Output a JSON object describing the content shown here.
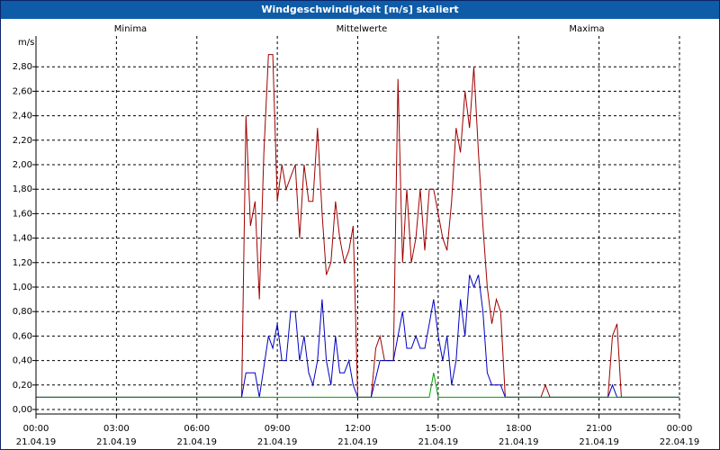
{
  "window": {
    "title": "Windgeschwindigkeit [m/s] skaliert"
  },
  "colors": {
    "min": "#00a000",
    "mean": "#0000c0",
    "max": "#a00000",
    "grid": "#000000"
  },
  "chart_data": {
    "type": "line",
    "title": "Windgeschwindigkeit [m/s] skaliert",
    "ylabel": "m/s",
    "ylim": [
      0,
      2.9
    ],
    "y_ticks": [
      "0,00",
      "0,20",
      "0,40",
      "0,60",
      "0,80",
      "1,00",
      "1,20",
      "1,40",
      "1,60",
      "1,80",
      "2,00",
      "2,20",
      "2,40",
      "2,60",
      "2,80"
    ],
    "x_range_hours": [
      0,
      24
    ],
    "x_tick_hours": [
      0,
      3,
      6,
      9,
      12,
      15,
      18,
      21,
      24
    ],
    "x_ticks": [
      {
        "time": "00:00",
        "date": "21.04.19"
      },
      {
        "time": "03:00",
        "date": "21.04.19"
      },
      {
        "time": "06:00",
        "date": "21.04.19"
      },
      {
        "time": "09:00",
        "date": "21.04.19"
      },
      {
        "time": "12:00",
        "date": "21.04.19"
      },
      {
        "time": "15:00",
        "date": "21.04.19"
      },
      {
        "time": "18:00",
        "date": "21.04.19"
      },
      {
        "time": "21:00",
        "date": "21.04.19"
      },
      {
        "time": "00:00",
        "date": "22.04.19"
      }
    ],
    "grid": true,
    "legend": [
      "Minima",
      "Mittelwerte",
      "Maxima"
    ],
    "series": [
      {
        "name": "Minima",
        "color": "#00a000",
        "points": [
          [
            0,
            0.1
          ],
          [
            14.67,
            0.1
          ],
          [
            14.83,
            0.3
          ],
          [
            15.0,
            0.1
          ],
          [
            24,
            0.1
          ]
        ]
      },
      {
        "name": "Mittelwerte",
        "color": "#0000c0",
        "points": [
          [
            0,
            0.1
          ],
          [
            7.67,
            0.1
          ],
          [
            7.83,
            0.3
          ],
          [
            8.17,
            0.3
          ],
          [
            8.33,
            0.1
          ],
          [
            8.67,
            0.6
          ],
          [
            8.83,
            0.5
          ],
          [
            9.0,
            0.7
          ],
          [
            9.17,
            0.4
          ],
          [
            9.33,
            0.4
          ],
          [
            9.5,
            0.8
          ],
          [
            9.67,
            0.8
          ],
          [
            9.83,
            0.4
          ],
          [
            10.0,
            0.6
          ],
          [
            10.17,
            0.3
          ],
          [
            10.33,
            0.2
          ],
          [
            10.5,
            0.4
          ],
          [
            10.67,
            0.9
          ],
          [
            10.83,
            0.4
          ],
          [
            11.0,
            0.2
          ],
          [
            11.17,
            0.6
          ],
          [
            11.33,
            0.3
          ],
          [
            11.5,
            0.3
          ],
          [
            11.67,
            0.4
          ],
          [
            11.83,
            0.2
          ],
          [
            12.0,
            0.1
          ],
          [
            12.5,
            0.1
          ],
          [
            12.83,
            0.4
          ],
          [
            13.17,
            0.4
          ],
          [
            13.33,
            0.4
          ],
          [
            13.5,
            0.6
          ],
          [
            13.67,
            0.8
          ],
          [
            13.83,
            0.5
          ],
          [
            14.0,
            0.5
          ],
          [
            14.17,
            0.6
          ],
          [
            14.33,
            0.5
          ],
          [
            14.5,
            0.5
          ],
          [
            14.67,
            0.7
          ],
          [
            14.83,
            0.9
          ],
          [
            15.0,
            0.6
          ],
          [
            15.17,
            0.4
          ],
          [
            15.33,
            0.6
          ],
          [
            15.5,
            0.2
          ],
          [
            15.67,
            0.4
          ],
          [
            15.83,
            0.9
          ],
          [
            16.0,
            0.6
          ],
          [
            16.17,
            1.1
          ],
          [
            16.33,
            1.0
          ],
          [
            16.5,
            1.1
          ],
          [
            16.67,
            0.8
          ],
          [
            16.83,
            0.3
          ],
          [
            17.0,
            0.2
          ],
          [
            17.17,
            0.2
          ],
          [
            17.33,
            0.2
          ],
          [
            17.5,
            0.1
          ],
          [
            21.0,
            0.1
          ],
          [
            21.33,
            0.1
          ],
          [
            21.5,
            0.2
          ],
          [
            21.67,
            0.1
          ],
          [
            24,
            0.1
          ]
        ]
      },
      {
        "name": "Maxima",
        "color": "#a00000",
        "points": [
          [
            0,
            0.1
          ],
          [
            7.67,
            0.1
          ],
          [
            7.83,
            2.4
          ],
          [
            8.0,
            1.5
          ],
          [
            8.17,
            1.7
          ],
          [
            8.33,
            0.9
          ],
          [
            8.5,
            2.1
          ],
          [
            8.67,
            2.9
          ],
          [
            8.83,
            2.9
          ],
          [
            9.0,
            1.7
          ],
          [
            9.17,
            2.0
          ],
          [
            9.33,
            1.8
          ],
          [
            9.5,
            1.9
          ],
          [
            9.67,
            2.0
          ],
          [
            9.83,
            1.4
          ],
          [
            10.0,
            2.0
          ],
          [
            10.17,
            1.7
          ],
          [
            10.33,
            1.7
          ],
          [
            10.5,
            2.3
          ],
          [
            10.67,
            1.6
          ],
          [
            10.83,
            1.1
          ],
          [
            11.0,
            1.2
          ],
          [
            11.17,
            1.7
          ],
          [
            11.33,
            1.4
          ],
          [
            11.5,
            1.2
          ],
          [
            11.67,
            1.3
          ],
          [
            11.83,
            1.5
          ],
          [
            12.0,
            0.1
          ],
          [
            12.5,
            0.1
          ],
          [
            12.67,
            0.5
          ],
          [
            12.83,
            0.6
          ],
          [
            13.0,
            0.4
          ],
          [
            13.17,
            0.4
          ],
          [
            13.33,
            0.4
          ],
          [
            13.5,
            2.7
          ],
          [
            13.67,
            1.2
          ],
          [
            13.83,
            1.8
          ],
          [
            14.0,
            1.2
          ],
          [
            14.17,
            1.4
          ],
          [
            14.33,
            1.8
          ],
          [
            14.5,
            1.3
          ],
          [
            14.67,
            1.8
          ],
          [
            14.83,
            1.8
          ],
          [
            15.0,
            1.6
          ],
          [
            15.17,
            1.4
          ],
          [
            15.33,
            1.3
          ],
          [
            15.5,
            1.7
          ],
          [
            15.67,
            2.3
          ],
          [
            15.83,
            2.1
          ],
          [
            16.0,
            2.6
          ],
          [
            16.17,
            2.3
          ],
          [
            16.33,
            2.8
          ],
          [
            16.5,
            2.1
          ],
          [
            16.67,
            1.5
          ],
          [
            16.83,
            1.0
          ],
          [
            17.0,
            0.7
          ],
          [
            17.17,
            0.9
          ],
          [
            17.33,
            0.8
          ],
          [
            17.5,
            0.1
          ],
          [
            18.83,
            0.1
          ],
          [
            19.0,
            0.2
          ],
          [
            19.17,
            0.1
          ],
          [
            21.33,
            0.1
          ],
          [
            21.5,
            0.6
          ],
          [
            21.67,
            0.7
          ],
          [
            21.83,
            0.1
          ],
          [
            24,
            0.1
          ]
        ]
      }
    ]
  }
}
